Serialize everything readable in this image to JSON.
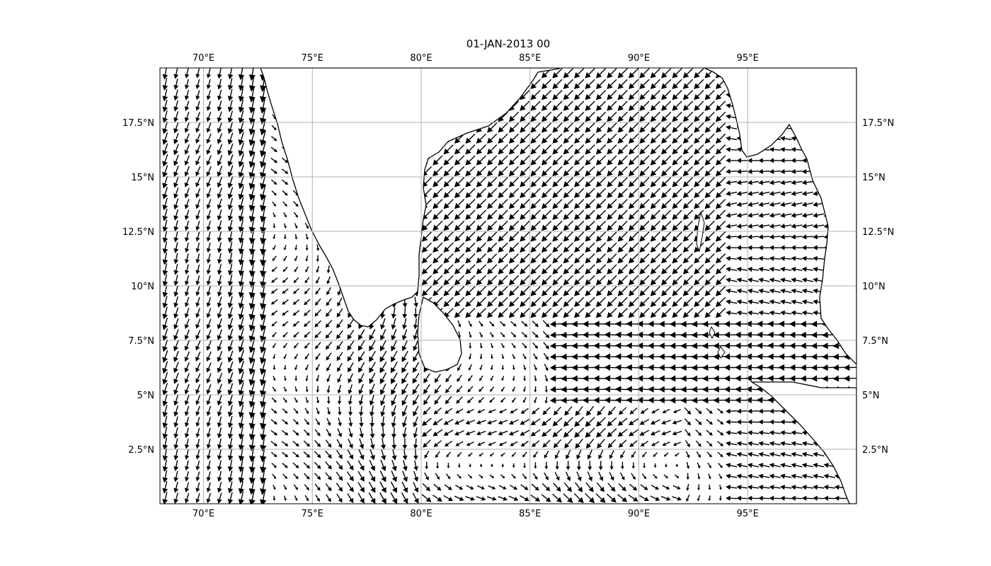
{
  "title": "01-JAN-2013 00",
  "map": {
    "type": "quiver",
    "lon_range": [
      68,
      100
    ],
    "lat_range": [
      0,
      20
    ],
    "gridlines": true,
    "grid_color": "#b0b0b0",
    "land_color": "#ffffff",
    "coastline_color": "#000000",
    "arrow_color": "#000000",
    "x_ticks": [
      "70°E",
      "75°E",
      "80°E",
      "85°E",
      "90°E",
      "95°E"
    ],
    "x_tick_values": [
      70,
      75,
      80,
      85,
      90,
      95
    ],
    "y_ticks": [
      "2.5°N",
      "5°N",
      "7.5°N",
      "10°N",
      "12.5°N",
      "15°N",
      "17.5°N"
    ],
    "y_tick_values": [
      2.5,
      5,
      7.5,
      10,
      12.5,
      15,
      17.5
    ]
  }
}
